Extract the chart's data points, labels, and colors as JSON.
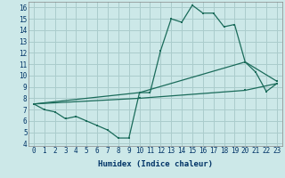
{
  "xlabel": "Humidex (Indice chaleur)",
  "bg_color": "#cce8e8",
  "grid_color": "#aacccc",
  "line_color": "#1a6b5a",
  "xlim": [
    -0.5,
    23.5
  ],
  "ylim": [
    3.8,
    16.5
  ],
  "yticks": [
    4,
    5,
    6,
    7,
    8,
    9,
    10,
    11,
    12,
    13,
    14,
    15,
    16
  ],
  "xticks": [
    0,
    1,
    2,
    3,
    4,
    5,
    6,
    7,
    8,
    9,
    10,
    11,
    12,
    13,
    14,
    15,
    16,
    17,
    18,
    19,
    20,
    21,
    22,
    23
  ],
  "line1_x": [
    0,
    1,
    2,
    3,
    4,
    5,
    6,
    7,
    8,
    9,
    10,
    11,
    12,
    13,
    14,
    15,
    16,
    17,
    18,
    19,
    20,
    21,
    22,
    23
  ],
  "line1_y": [
    7.5,
    7.0,
    6.8,
    6.2,
    6.4,
    6.0,
    5.6,
    5.2,
    4.5,
    4.5,
    8.5,
    8.5,
    12.2,
    15.0,
    14.7,
    16.2,
    15.5,
    15.5,
    14.3,
    14.5,
    11.2,
    10.3,
    8.6,
    9.3
  ],
  "line2_x": [
    0,
    10,
    20,
    23
  ],
  "line2_y": [
    7.5,
    8.5,
    11.2,
    9.5
  ],
  "line3_x": [
    0,
    10,
    20,
    23
  ],
  "line3_y": [
    7.5,
    8.0,
    8.7,
    9.3
  ]
}
